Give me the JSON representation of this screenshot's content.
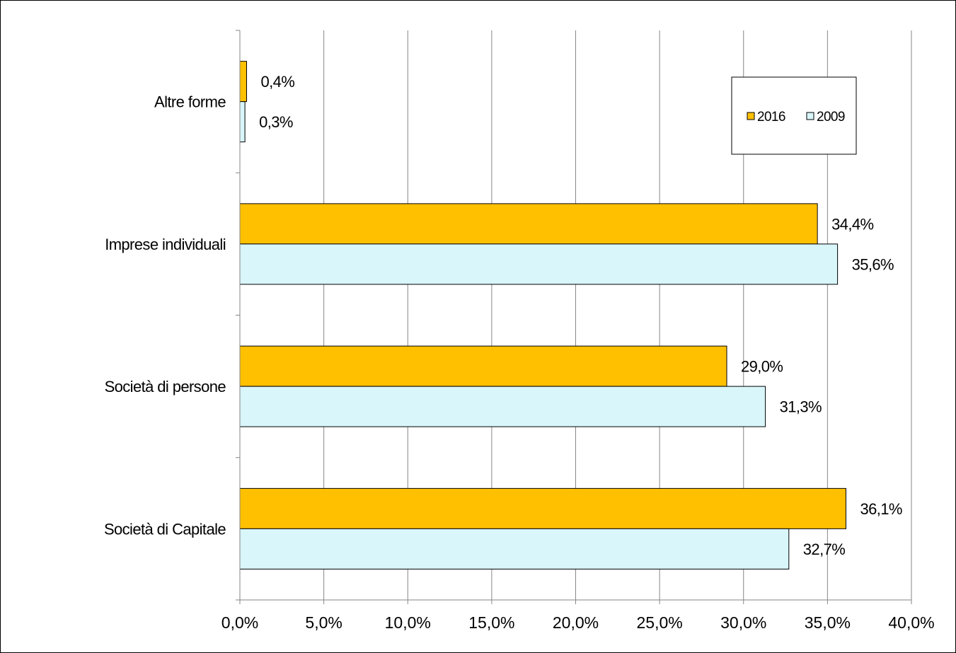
{
  "chart_data": {
    "type": "bar",
    "orientation": "horizontal",
    "categories": [
      "Altre forme",
      "Imprese individuali",
      "Società di persone",
      "Società di Capitale"
    ],
    "series": [
      {
        "name": "2016",
        "color": "#FFC000",
        "values": [
          0.4,
          34.4,
          29.0,
          36.1
        ],
        "labels": [
          "0,4%",
          "34,4%",
          "29,0%",
          "36,1%"
        ]
      },
      {
        "name": "2009",
        "color": "#D9F6FA",
        "values": [
          0.3,
          35.6,
          31.3,
          32.7
        ],
        "labels": [
          "0,3%",
          "35,6%",
          "31,3%",
          "32,7%"
        ]
      }
    ],
    "xlim": [
      0,
      40
    ],
    "xticks": [
      0,
      5,
      10,
      15,
      20,
      25,
      30,
      35,
      40
    ],
    "xtick_labels": [
      "0,0%",
      "5,0%",
      "10,0%",
      "15,0%",
      "20,0%",
      "25,0%",
      "30,0%",
      "35,0%",
      "40,0%"
    ],
    "grid": "vertical",
    "legend_placement": "top-right",
    "title": "",
    "xlabel": "",
    "ylabel": ""
  }
}
